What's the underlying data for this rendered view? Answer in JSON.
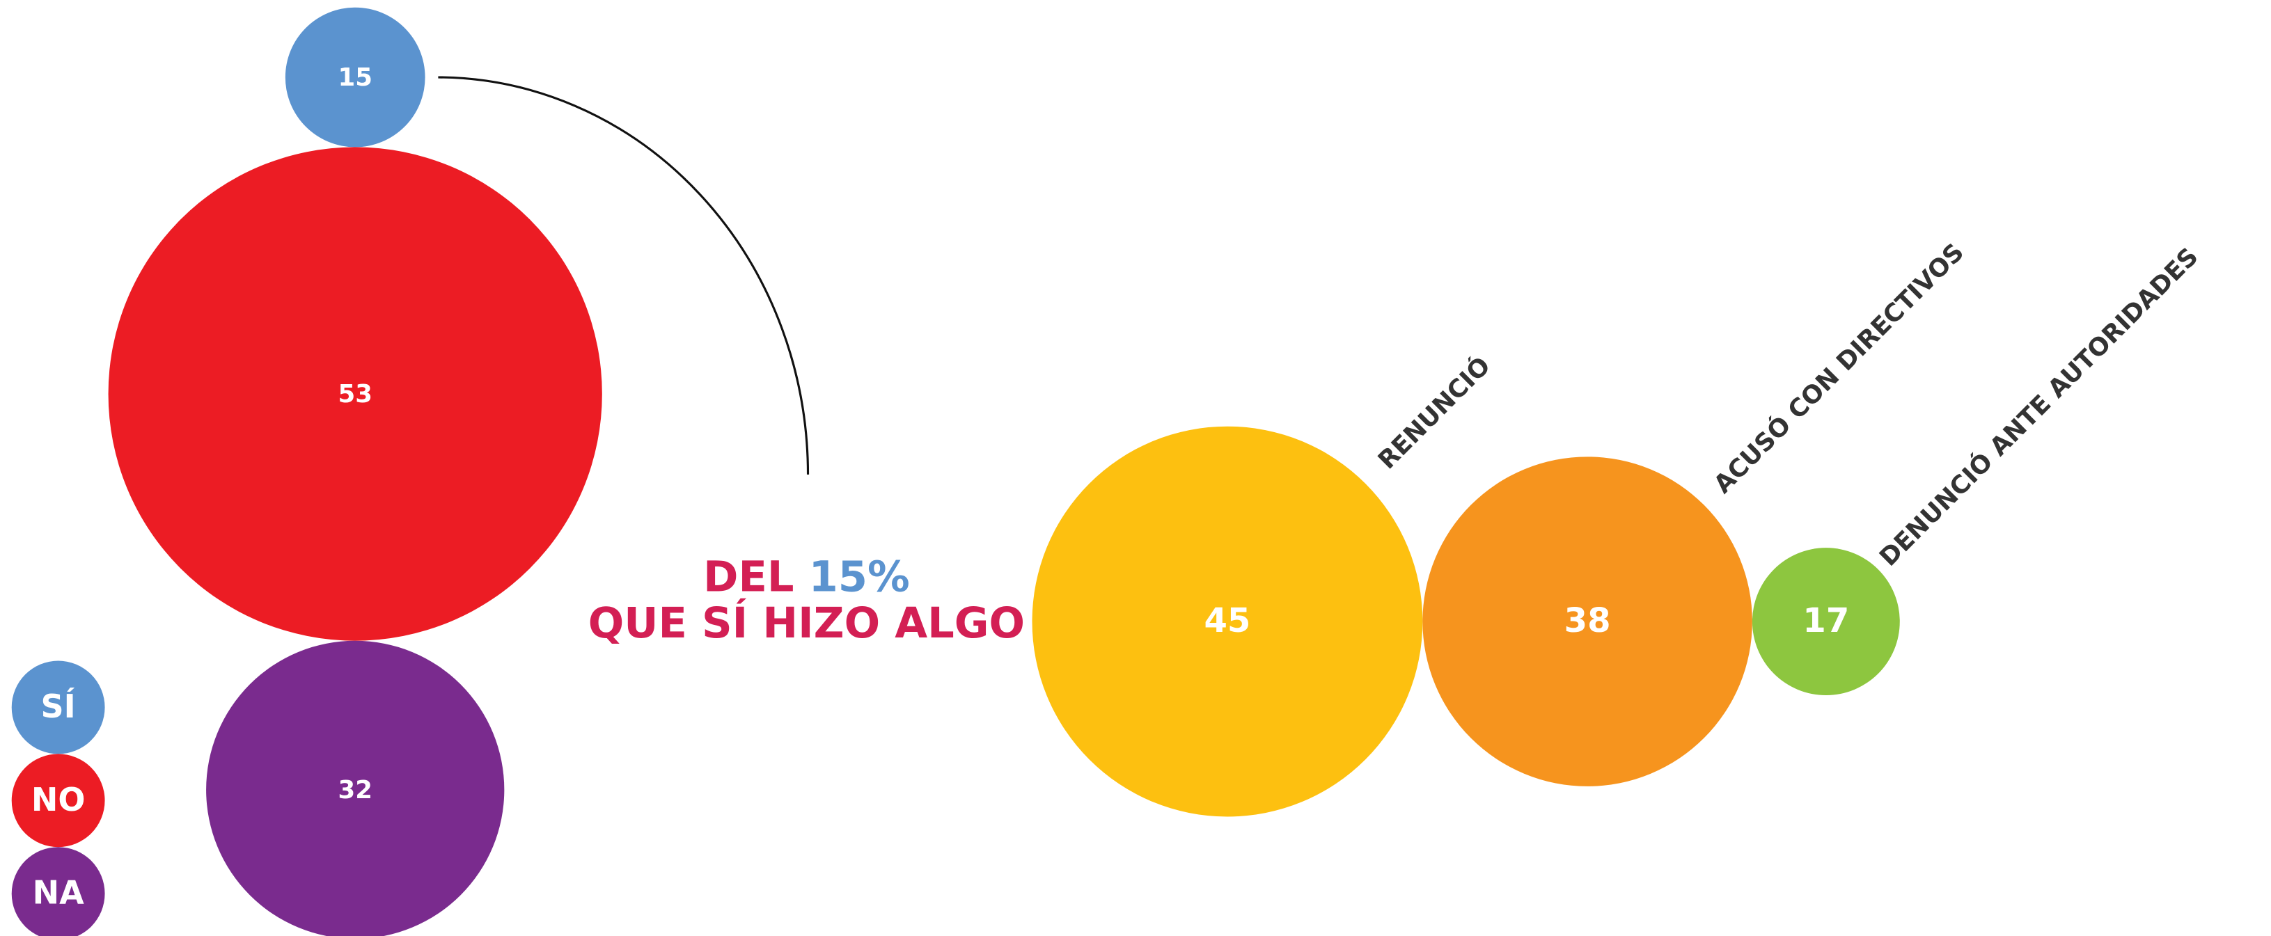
{
  "chart_data": [
    {
      "type": "bubble",
      "layout": "vertical",
      "categories": [
        "SÍ",
        "NO",
        "NA"
      ],
      "values": [
        15,
        53,
        32
      ],
      "colors": [
        "#5b93cf",
        "#ec1c24",
        "#7a2b8e"
      ]
    },
    {
      "type": "bubble",
      "layout": "horizontal",
      "title": {
        "lead": "DEL",
        "highlight": "15%",
        "rest": "QUE SÍ HIZO ALGO"
      },
      "categories": [
        "RENUNCIÓ",
        "ACUSÓ CON DIRECTIVOS",
        "DENUNCIÓ ANTE AUTORIDADES"
      ],
      "values": [
        45,
        38,
        17
      ],
      "colors": [
        "#fdc010",
        "#f6941e",
        "#8dc63f"
      ]
    }
  ]
}
